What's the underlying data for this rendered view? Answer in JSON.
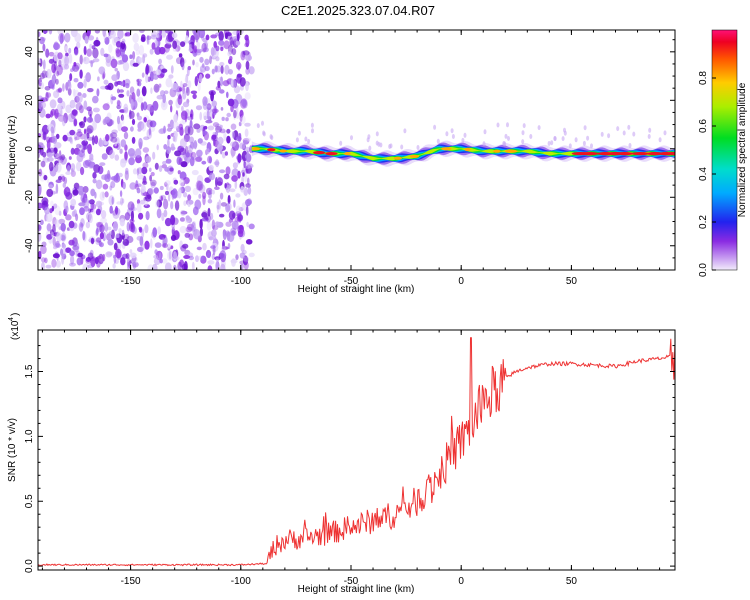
{
  "chart_data": [
    {
      "type": "heatmap",
      "title": "C2E1.2025.323.07.04.R07",
      "xlabel": "Height of straight line (km)",
      "ylabel": "Frequency (Hz)",
      "xlim": [
        -192,
        97
      ],
      "ylim": [
        -50,
        49
      ],
      "x_ticks": [
        -150,
        -100,
        -50,
        0,
        50
      ],
      "y_ticks": [
        -40,
        -20,
        0,
        20,
        40
      ],
      "noise_region_x": [
        -192,
        -95
      ],
      "signal_band_frequency_hz": [
        [
          -95,
          0
        ],
        [
          -90,
          0
        ],
        [
          -80,
          -1
        ],
        [
          -70,
          -1
        ],
        [
          -60,
          -2
        ],
        [
          -50,
          -2
        ],
        [
          -40,
          -4
        ],
        [
          -30,
          -4
        ],
        [
          -20,
          -3
        ],
        [
          -10,
          0
        ],
        [
          0,
          0
        ],
        [
          10,
          -1
        ],
        [
          20,
          -1
        ],
        [
          30,
          -1
        ],
        [
          40,
          -2
        ],
        [
          50,
          -2
        ],
        [
          60,
          -2
        ],
        [
          70,
          -2
        ],
        [
          80,
          -2
        ],
        [
          90,
          -2
        ],
        [
          97,
          -2
        ]
      ],
      "colorbar": {
        "label": "Normalized spectral amplitude",
        "range": [
          0.0,
          1.0
        ],
        "ticks": [
          "0.0",
          "0.2",
          "0.4",
          "0.6",
          "0.8"
        ]
      }
    },
    {
      "type": "line",
      "xlabel": "Height of straight line (km)",
      "ylabel": "SNR (10 * v/v)",
      "multiplier_label": "(x10",
      "multiplier_exp": "4",
      "xlim": [
        -192,
        97
      ],
      "ylim": [
        -0.03,
        1.82
      ],
      "x_ticks": [
        -150,
        -100,
        -50,
        0,
        50
      ],
      "y_ticks": [
        "0.0",
        "0.5",
        "1.0",
        "1.5"
      ],
      "color": "#ee3333",
      "series": [
        {
          "name": "SNR",
          "points": [
            [
              -192,
              0.01
            ],
            [
              -150,
              0.01
            ],
            [
              -100,
              0.01
            ],
            [
              -88,
              0.02
            ],
            [
              -85,
              0.15
            ],
            [
              -80,
              0.2
            ],
            [
              -70,
              0.22
            ],
            [
              -60,
              0.25
            ],
            [
              -50,
              0.3
            ],
            [
              -40,
              0.35
            ],
            [
              -30,
              0.4
            ],
            [
              -20,
              0.5
            ],
            [
              -10,
              0.7
            ],
            [
              -5,
              0.85
            ],
            [
              0,
              0.95
            ],
            [
              5,
              1.1
            ],
            [
              10,
              1.25
            ],
            [
              15,
              1.35
            ],
            [
              20,
              1.45
            ],
            [
              25,
              1.5
            ],
            [
              30,
              1.53
            ],
            [
              40,
              1.56
            ],
            [
              50,
              1.56
            ],
            [
              60,
              1.55
            ],
            [
              70,
              1.54
            ],
            [
              80,
              1.58
            ],
            [
              90,
              1.6
            ],
            [
              97,
              1.62
            ]
          ]
        }
      ]
    }
  ]
}
